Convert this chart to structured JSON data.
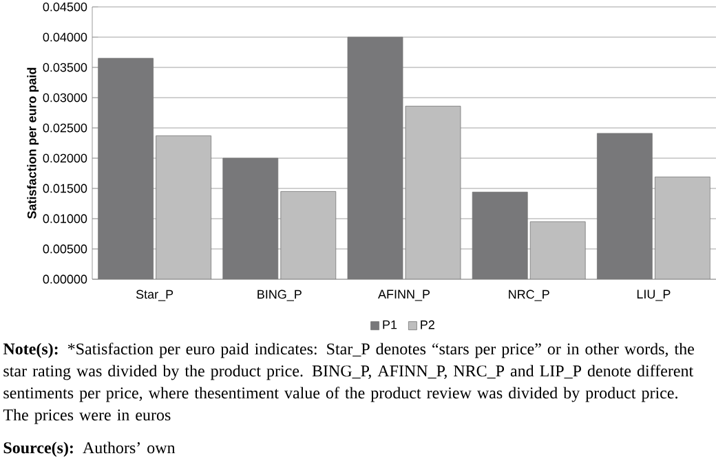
{
  "chart_data": {
    "type": "bar",
    "ylabel": "Satisfaction  per euro paid",
    "categories": [
      "Star_P",
      "BING_P",
      "AFINN_P",
      "NRC_P",
      "LIU_P"
    ],
    "series": [
      {
        "name": "P1",
        "color": "#78787a",
        "values": [
          0.0365,
          0.02,
          0.04,
          0.0144,
          0.0241
        ]
      },
      {
        "name": "P2",
        "color": "#bebebe",
        "values": [
          0.0237,
          0.0145,
          0.0286,
          0.0095,
          0.0169
        ]
      }
    ],
    "ylim": [
      0,
      0.045
    ],
    "yticks": [
      {
        "value": 0,
        "label": "0.00000"
      },
      {
        "value": 0.005,
        "label": "0.00500"
      },
      {
        "value": 0.01,
        "label": "0.01000"
      },
      {
        "value": 0.015,
        "label": "0.01500"
      },
      {
        "value": 0.02,
        "label": "0.02000"
      },
      {
        "value": 0.025,
        "label": "0.02500"
      },
      {
        "value": 0.03,
        "label": "0.03000"
      },
      {
        "value": 0.035,
        "label": "0.03500"
      },
      {
        "value": 0.04,
        "label": "0.04000"
      },
      {
        "value": 0.045,
        "label": "0.04500"
      }
    ],
    "grid": "y",
    "legend": "bottom",
    "annotations": [
      "**Note(s):** *Satisfaction per euro paid indicates: Star_P denotes “stars per price” or in other words, the star rating was divided by the product price. BING_P, AFINN_P, NRC_P and LIP_P denote different sentiments per price, where thesentiment value of the product review was divided by product price. The prices were in euros",
      "**Source(s):** Authors’ own"
    ]
  }
}
